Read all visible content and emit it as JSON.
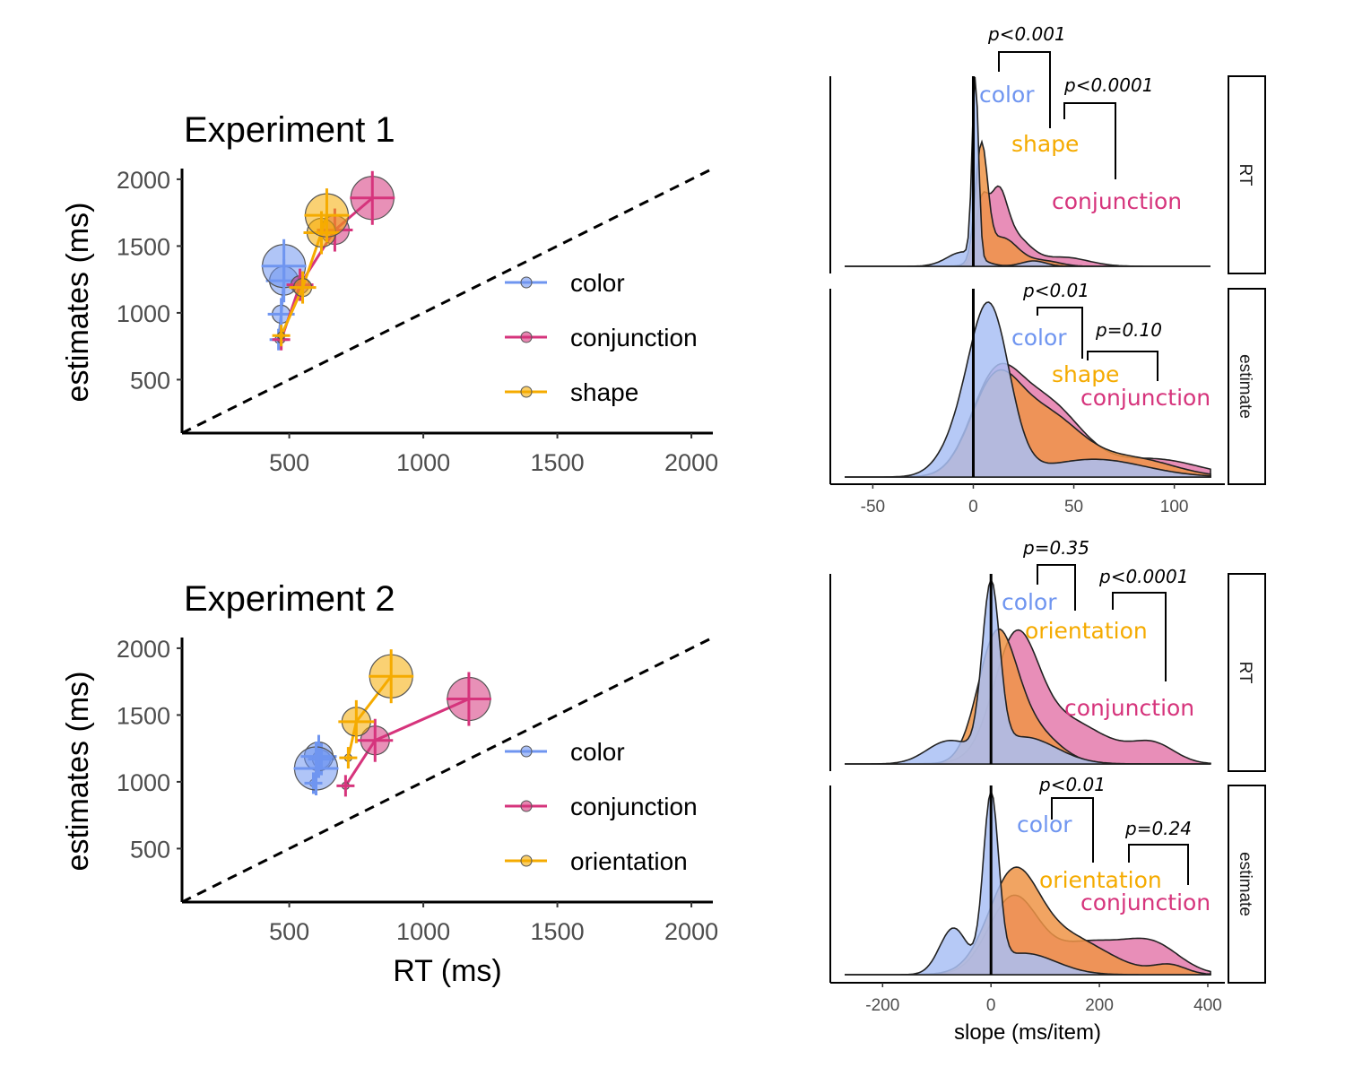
{
  "colors": {
    "color": "#6f95f0",
    "conjunction": "#d6347c",
    "shape": "#f5ab00",
    "orientation": "#f5ab00",
    "density_orange": "#ef9446",
    "density_blue": "#a9c0f5",
    "density_pink": "#e47aac",
    "density_tan": "#cfae77"
  },
  "chart_data": [
    {
      "type": "scatter",
      "title": "Experiment 1",
      "xlabel": "",
      "ylabel": "estimates (ms)",
      "xlim": [
        100,
        2080
      ],
      "ylim": [
        100,
        2080
      ],
      "xticks": [
        "500",
        "1000",
        "1500",
        "2000"
      ],
      "yticks": [
        "500",
        "1000",
        "1500",
        "2000"
      ],
      "identity_line": true,
      "legend_position": "center-right",
      "series": [
        {
          "name": "color",
          "key": "color",
          "points": [
            {
              "x": 460,
              "y": 800,
              "size": 0
            },
            {
              "x": 470,
              "y": 990,
              "size": 1
            },
            {
              "x": 480,
              "y": 1240,
              "size": 2
            },
            {
              "x": 480,
              "y": 1350,
              "size": 3
            }
          ]
        },
        {
          "name": "conjunction",
          "key": "conjunction",
          "points": [
            {
              "x": 470,
              "y": 800,
              "size": 0
            },
            {
              "x": 540,
              "y": 1210,
              "size": 1
            },
            {
              "x": 670,
              "y": 1620,
              "size": 2
            },
            {
              "x": 810,
              "y": 1860,
              "size": 3
            }
          ]
        },
        {
          "name": "shape",
          "key": "shape",
          "points": [
            {
              "x": 470,
              "y": 830,
              "size": 0
            },
            {
              "x": 550,
              "y": 1190,
              "size": 1
            },
            {
              "x": 620,
              "y": 1600,
              "size": 2
            },
            {
              "x": 640,
              "y": 1730,
              "size": 3
            }
          ]
        }
      ]
    },
    {
      "type": "scatter",
      "title": "Experiment 2",
      "xlabel": "RT (ms)",
      "ylabel": "estimates (ms)",
      "xlim": [
        100,
        2080
      ],
      "ylim": [
        100,
        2080
      ],
      "xticks": [
        "500",
        "1000",
        "1500",
        "2000"
      ],
      "yticks": [
        "500",
        "1000",
        "1500",
        "2000"
      ],
      "identity_line": true,
      "legend_position": "center-right",
      "series": [
        {
          "name": "color",
          "key": "color",
          "points": [
            {
              "x": 590,
              "y": 990,
              "size": 0
            },
            {
              "x": 620,
              "y": 1170,
              "size": 1
            },
            {
              "x": 610,
              "y": 1190,
              "size": 2
            },
            {
              "x": 600,
              "y": 1100,
              "size": 3
            }
          ]
        },
        {
          "name": "conjunction",
          "key": "conjunction",
          "points": [
            {
              "x": 710,
              "y": 970,
              "size": 0
            },
            {
              "x": 820,
              "y": 1310,
              "size": 2
            },
            {
              "x": 1170,
              "y": 1620,
              "size": 3
            }
          ]
        },
        {
          "name": "orientation",
          "key": "orientation",
          "points": [
            {
              "x": 720,
              "y": 1180,
              "size": 0
            },
            {
              "x": 750,
              "y": 1450,
              "size": 2
            },
            {
              "x": 880,
              "y": 1790,
              "size": 3
            }
          ]
        }
      ]
    },
    {
      "type": "area",
      "title": "",
      "xlabel": "",
      "ylabel": "",
      "facet": "RT",
      "xlim": [
        -64,
        118
      ],
      "xticks": [
        "-50",
        "0",
        "50",
        "100"
      ],
      "series": [
        "color",
        "shape",
        "conjunction"
      ],
      "annotations": [
        "p<0.001",
        "p<0.0001"
      ]
    },
    {
      "type": "area",
      "title": "",
      "xlabel": "",
      "ylabel": "",
      "facet": "estimate",
      "xlim": [
        -64,
        118
      ],
      "xticks": [
        "-50",
        "0",
        "50",
        "100"
      ],
      "series": [
        "color",
        "shape",
        "conjunction"
      ],
      "annotations": [
        "p<0.01",
        "p=0.10"
      ]
    },
    {
      "type": "area",
      "title": "",
      "xlabel": "",
      "ylabel": "",
      "facet": "RT",
      "xlim": [
        -270,
        405
      ],
      "xticks": [
        "-200",
        "0",
        "200",
        "400"
      ],
      "series": [
        "color",
        "orientation",
        "conjunction"
      ],
      "annotations": [
        "p=0.35",
        "p<0.0001"
      ]
    },
    {
      "type": "area",
      "title": "",
      "xlabel": "slope (ms/item)",
      "ylabel": "",
      "facet": "estimate",
      "xlim": [
        -270,
        405
      ],
      "xticks": [
        "-200",
        "0",
        "200",
        "400"
      ],
      "series": [
        "color",
        "orientation",
        "conjunction"
      ],
      "annotations": [
        "p<0.01",
        "p=0.24"
      ]
    }
  ]
}
